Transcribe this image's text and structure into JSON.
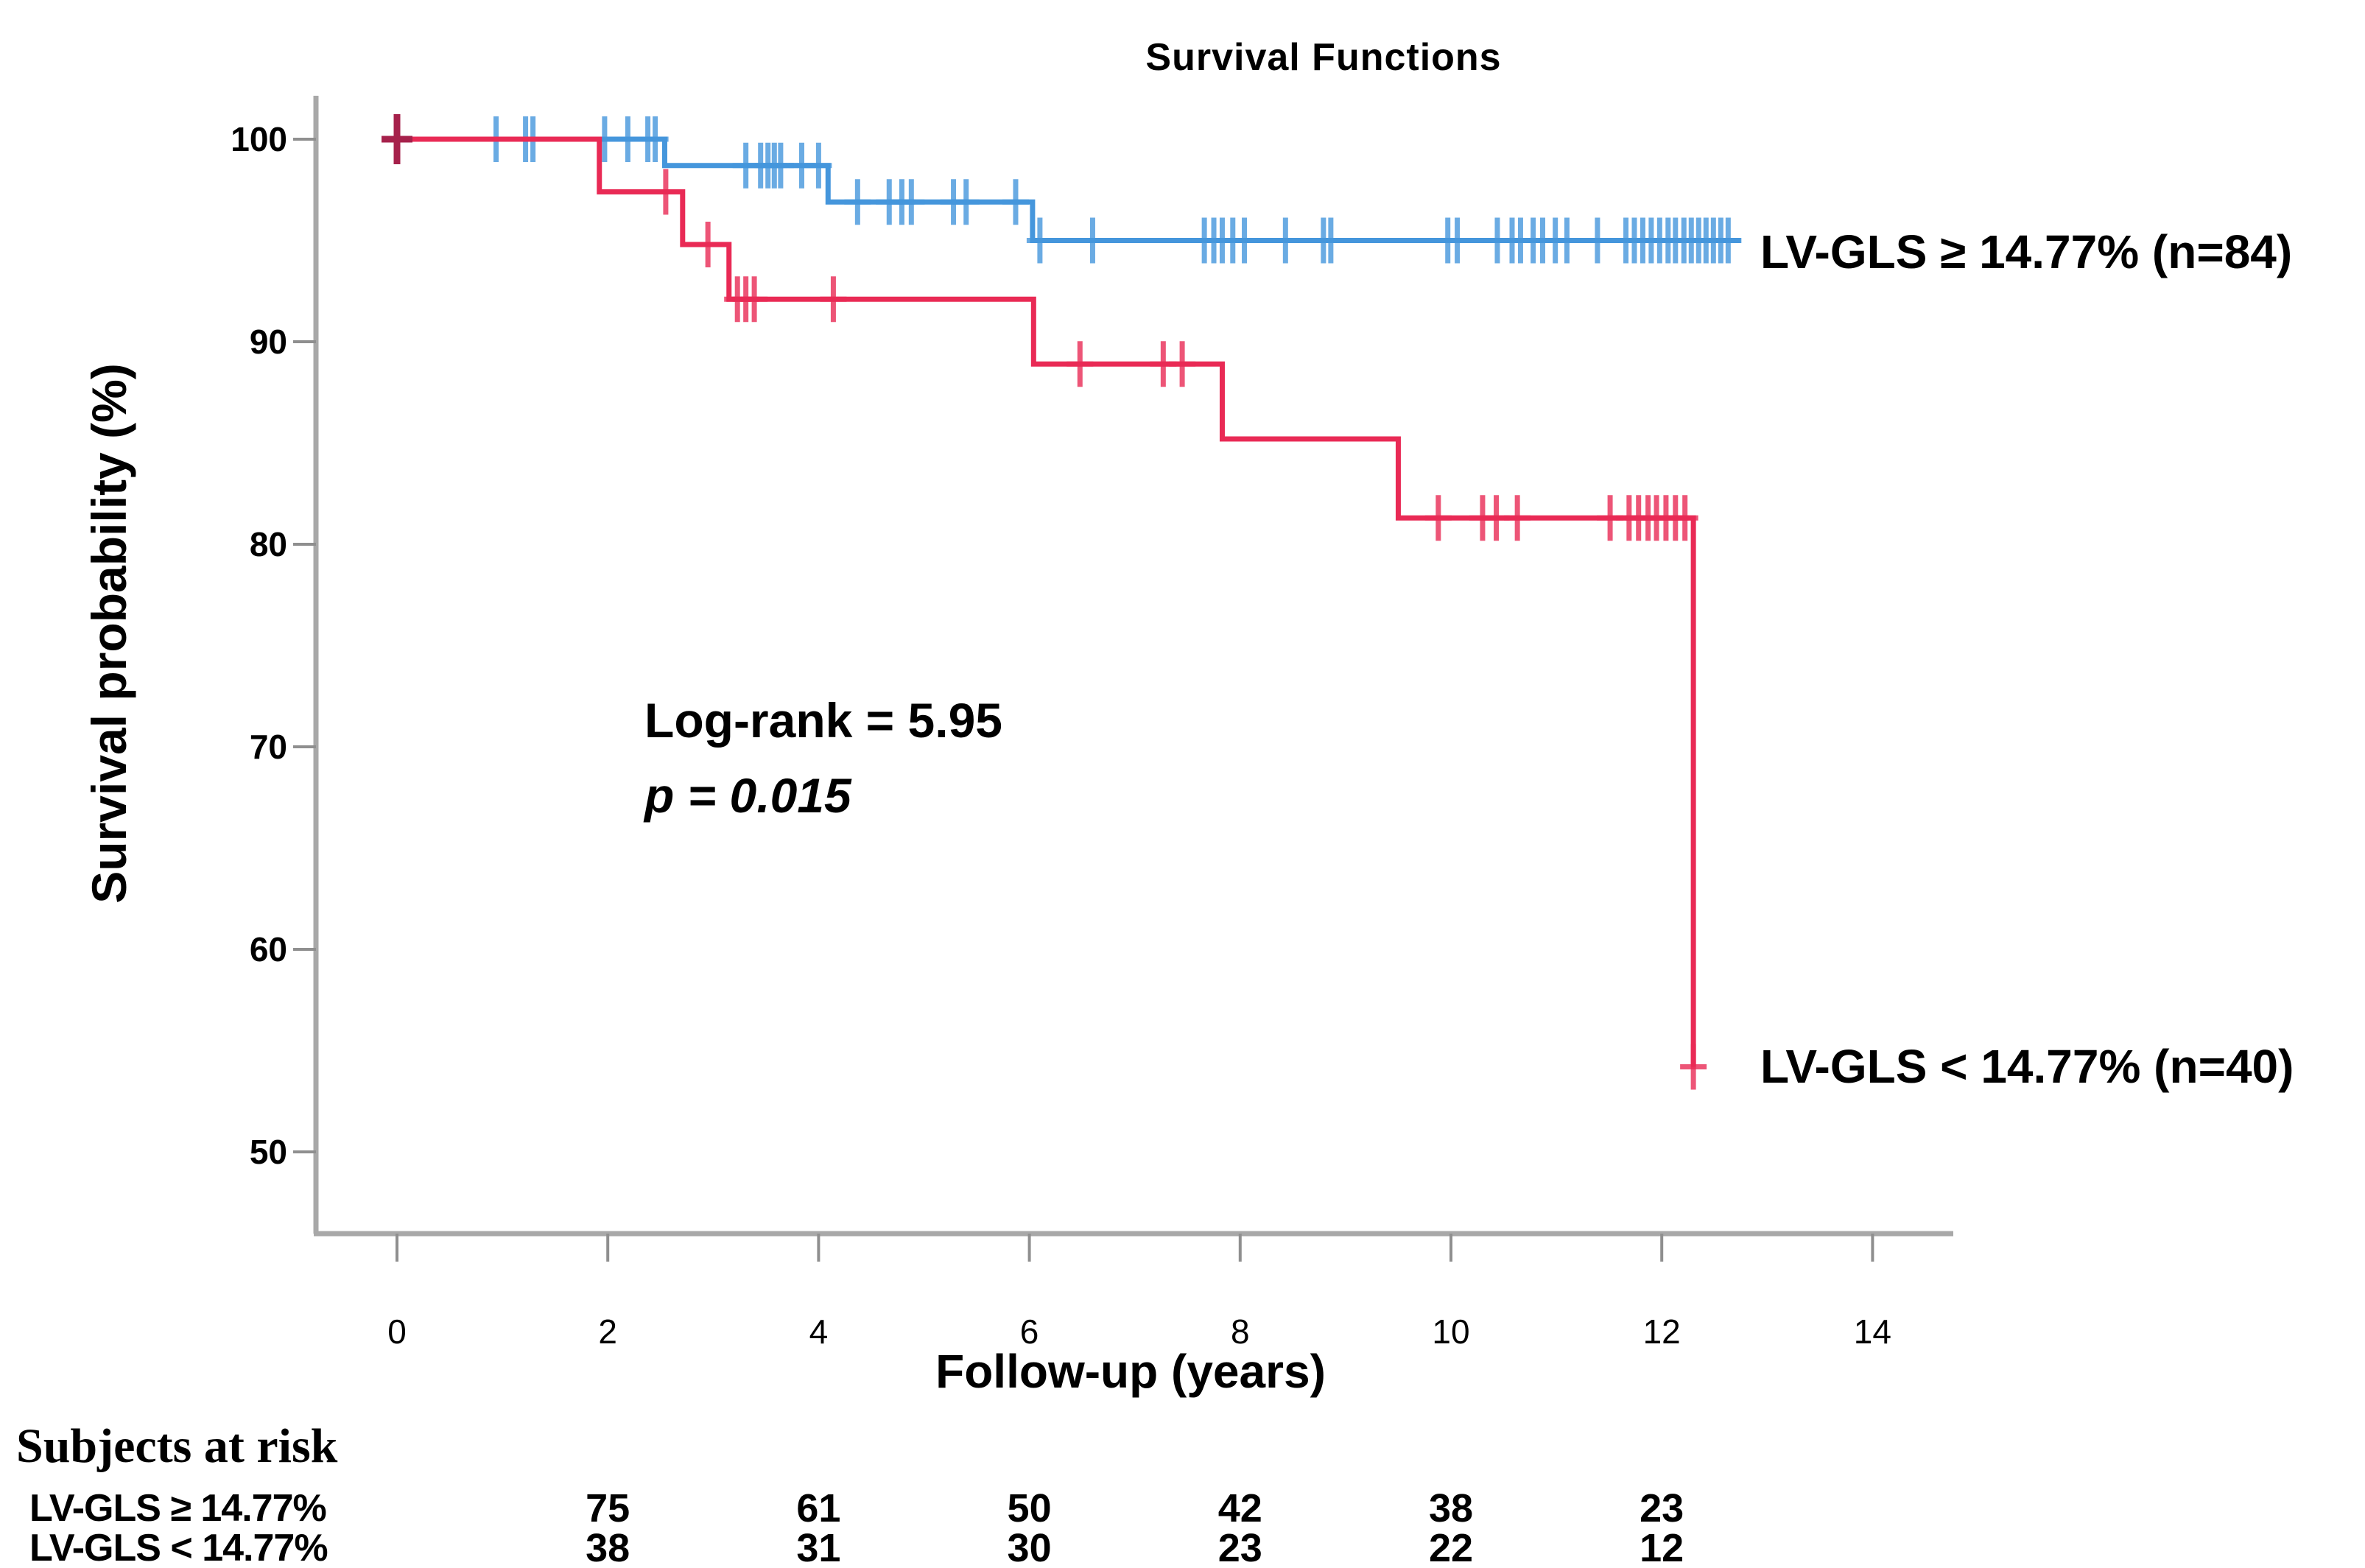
{
  "title": "Survival Functions",
  "axes": {
    "y_label": "Survival probability (%)",
    "x_label": "Follow-up (years)",
    "y_ticks": [
      "100",
      "90",
      "80",
      "70",
      "60",
      "50"
    ],
    "x_ticks": [
      "0",
      "2",
      "4",
      "6",
      "8",
      "10",
      "12",
      "14"
    ]
  },
  "annotation": {
    "line1": "Log-rank = 5.95",
    "line2": "p = 0.015"
  },
  "series_labels": {
    "high": "LV-GLS ≥ 14.77% (n=84)",
    "low": "LV-GLS < 14.77% (n=40)"
  },
  "risk_table": {
    "header": "Subjects at risk",
    "rows": [
      {
        "label": "LV-GLS ≥ 14.77%",
        "values": [
          "75",
          "61",
          "50",
          "42",
          "38",
          "23"
        ]
      },
      {
        "label": "LV-GLS < 14.77%",
        "values": [
          "38",
          "31",
          "30",
          "23",
          "22",
          "12"
        ]
      }
    ]
  },
  "colors": {
    "high": "#4596dc",
    "low": "#e92a55",
    "start_marker": "#a6214b",
    "axis": "#a8a8a8",
    "tick": "#8f8f8f",
    "text": "#000000"
  },
  "chart_data": {
    "type": "line",
    "subtype": "kaplan-meier-step",
    "title": "Survival Functions",
    "xlabel": "Follow-up (years)",
    "ylabel": "Survival probability (%)",
    "xlim": [
      -0.8,
      14.8
    ],
    "ylim": [
      46,
      102
    ],
    "x_ticks": [
      0,
      2,
      4,
      6,
      8,
      10,
      12,
      14
    ],
    "y_ticks": [
      100,
      90,
      80,
      70,
      60,
      50
    ],
    "grid": false,
    "legend_position": "right-of-curve-ends",
    "annotations": {
      "log_rank": "5.95",
      "p_value": "0.015"
    },
    "risk_times": [
      2,
      4,
      6,
      8,
      10,
      12
    ],
    "start_marker": {
      "t": 0,
      "p": 100
    },
    "series": [
      {
        "name": "LV-GLS ≥ 14.77% (n=84)",
        "n": 84,
        "color_key": "high",
        "steps": [
          [
            0,
            100
          ],
          [
            2.54,
            98.7
          ],
          [
            4.09,
            96.9
          ],
          [
            6.03,
            95.0
          ]
        ],
        "end_t": 12.75,
        "at_risk": [
          75,
          61,
          50,
          42,
          38,
          23
        ],
        "censor_marks": [
          [
            0.94,
            100
          ],
          [
            1.22,
            100
          ],
          [
            1.29,
            100
          ],
          [
            1.97,
            100
          ],
          [
            2.19,
            100
          ],
          [
            2.38,
            100
          ],
          [
            2.45,
            100
          ],
          [
            3.31,
            98.7
          ],
          [
            3.45,
            98.7
          ],
          [
            3.52,
            98.7
          ],
          [
            3.58,
            98.7
          ],
          [
            3.64,
            98.7
          ],
          [
            3.84,
            98.7
          ],
          [
            4.0,
            98.7
          ],
          [
            4.37,
            96.9
          ],
          [
            4.67,
            96.9
          ],
          [
            4.79,
            96.9
          ],
          [
            4.88,
            96.9
          ],
          [
            5.28,
            96.9
          ],
          [
            5.4,
            96.9
          ],
          [
            5.87,
            96.9
          ],
          [
            6.1,
            95.0
          ],
          [
            6.6,
            95.0
          ],
          [
            7.66,
            95.0
          ],
          [
            7.75,
            95.0
          ],
          [
            7.83,
            95.0
          ],
          [
            7.93,
            95.0
          ],
          [
            8.04,
            95.0
          ],
          [
            8.43,
            95.0
          ],
          [
            8.79,
            95.0
          ],
          [
            8.86,
            95.0
          ],
          [
            9.97,
            95.0
          ],
          [
            10.06,
            95.0
          ],
          [
            10.44,
            95.0
          ],
          [
            10.58,
            95.0
          ],
          [
            10.66,
            95.0
          ],
          [
            10.78,
            95.0
          ],
          [
            10.87,
            95.0
          ],
          [
            10.99,
            95.0
          ],
          [
            11.1,
            95.0
          ],
          [
            11.39,
            95.0
          ],
          [
            11.66,
            95.0
          ],
          [
            11.74,
            95.0
          ],
          [
            11.82,
            95.0
          ],
          [
            11.9,
            95.0
          ],
          [
            11.98,
            95.0
          ],
          [
            12.06,
            95.0
          ],
          [
            12.13,
            95.0
          ],
          [
            12.21,
            95.0
          ],
          [
            12.28,
            95.0
          ],
          [
            12.35,
            95.0
          ],
          [
            12.42,
            95.0
          ],
          [
            12.49,
            95.0
          ],
          [
            12.56,
            95.0
          ],
          [
            12.63,
            95.0
          ]
        ]
      },
      {
        "name": "LV-GLS < 14.77% (n=40)",
        "n": 40,
        "color_key": "low",
        "steps": [
          [
            0,
            100
          ],
          [
            1.92,
            97.4
          ],
          [
            2.71,
            94.8
          ],
          [
            3.15,
            92.1
          ],
          [
            6.04,
            88.9
          ],
          [
            7.83,
            85.2
          ],
          [
            9.5,
            81.3
          ],
          [
            12.3,
            54.2
          ]
        ],
        "end_t": 12.3,
        "at_risk": [
          38,
          31,
          30,
          23,
          22,
          12
        ],
        "censor_marks": [
          [
            2.55,
            97.4
          ],
          [
            2.95,
            94.8
          ],
          [
            3.23,
            92.1
          ],
          [
            3.31,
            92.1
          ],
          [
            3.39,
            92.1
          ],
          [
            4.14,
            92.1
          ],
          [
            6.48,
            88.9
          ],
          [
            7.27,
            88.9
          ],
          [
            7.45,
            88.9
          ],
          [
            9.88,
            81.3
          ],
          [
            10.3,
            81.3
          ],
          [
            10.43,
            81.3
          ],
          [
            10.63,
            81.3
          ],
          [
            11.51,
            81.3
          ],
          [
            11.69,
            81.3
          ],
          [
            11.78,
            81.3
          ],
          [
            11.87,
            81.3
          ],
          [
            11.95,
            81.3
          ],
          [
            12.04,
            81.3
          ],
          [
            12.13,
            81.3
          ],
          [
            12.22,
            81.3
          ],
          [
            12.3,
            54.2
          ]
        ]
      }
    ]
  }
}
